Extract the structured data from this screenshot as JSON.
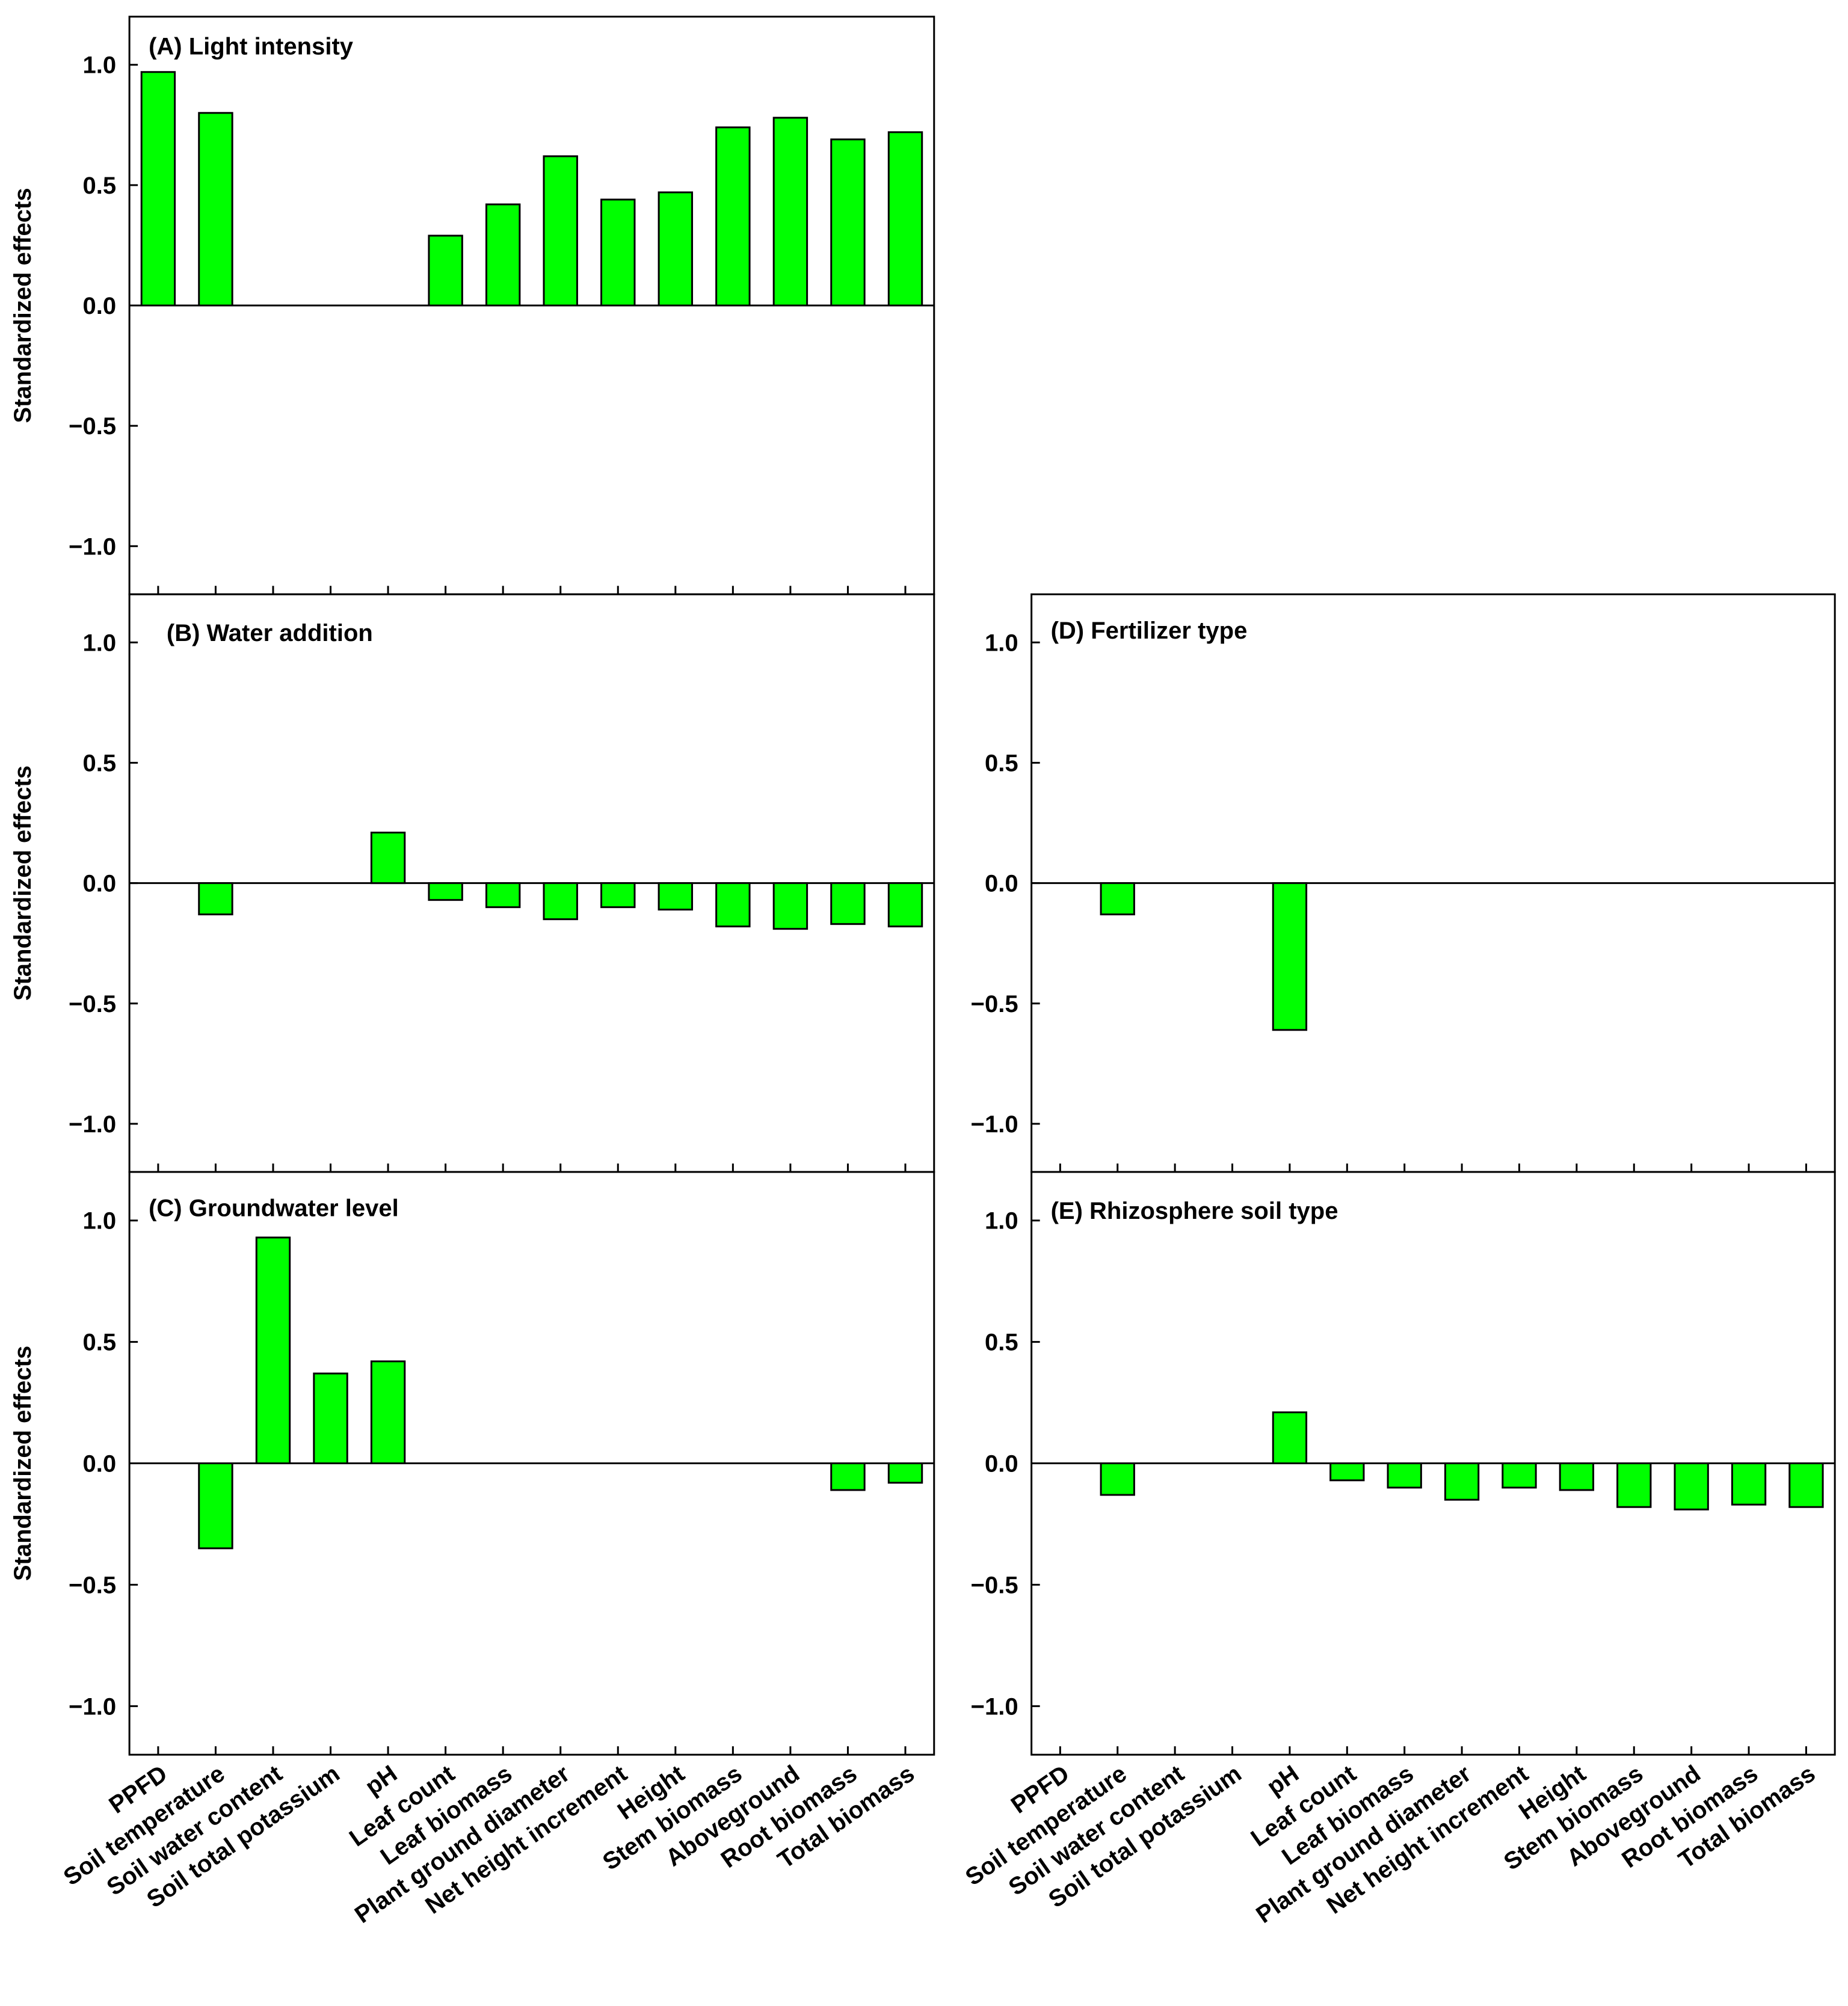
{
  "figure": {
    "ylabel": "Standardized effects"
  },
  "colors": {
    "bar_fill": "#00ff00",
    "bar_stroke": "#000000",
    "axis": "#000000",
    "background": "#ffffff"
  },
  "chart_data": [
    {
      "type": "bar",
      "title": "(A) Light intensity",
      "ylabel": "Standardized effects",
      "ylim": [
        -1.2,
        1.2
      ],
      "yticks": [
        "1.0",
        "0.5",
        "0.0",
        "−0.5",
        "−1.0"
      ],
      "categories": [
        "PPFD",
        "Soil temperature",
        "Soil water content",
        "Soil total potassium",
        "pH",
        "Leaf count",
        "Leaf biomass",
        "Plant ground diameter",
        "Net height increment",
        "Height",
        "Stem biomass",
        "Aboveground",
        "Root biomass",
        "Total biomass"
      ],
      "values": [
        0.97,
        0.8,
        0,
        0,
        0,
        0.29,
        0.42,
        0.62,
        0.44,
        0.47,
        0.74,
        0.78,
        0.69,
        0.72
      ]
    },
    {
      "type": "bar",
      "title": "(B) Water addition",
      "ylabel": "Standardized effects",
      "ylim": [
        -1.2,
        1.2
      ],
      "yticks": [
        "1.0",
        "0.5",
        "0.0",
        "−0.5",
        "−1.0"
      ],
      "categories": [
        "PPFD",
        "Soil temperature",
        "Soil water content",
        "Soil total potassium",
        "pH",
        "Leaf count",
        "Leaf biomass",
        "Plant ground diameter",
        "Net height increment",
        "Height",
        "Stem biomass",
        "Aboveground",
        "Root biomass",
        "Total biomass"
      ],
      "values": [
        0,
        -0.13,
        0,
        0,
        0.21,
        -0.07,
        -0.1,
        -0.15,
        -0.1,
        -0.11,
        -0.18,
        -0.19,
        -0.17,
        -0.18
      ]
    },
    {
      "type": "bar",
      "title": "(C) Groundwater level",
      "ylabel": "Standardized effects",
      "ylim": [
        -1.2,
        1.2
      ],
      "yticks": [
        "1.0",
        "0.5",
        "0.0",
        "−0.5",
        "−1.0"
      ],
      "categories": [
        "PPFD",
        "Soil temperature",
        "Soil water content",
        "Soil total potassium",
        "pH",
        "Leaf count",
        "Leaf biomass",
        "Plant ground diameter",
        "Net height increment",
        "Height",
        "Stem biomass",
        "Aboveground",
        "Root biomass",
        "Total biomass"
      ],
      "values": [
        0,
        -0.35,
        0.93,
        0.37,
        0.42,
        0,
        0,
        0,
        0,
        0,
        0,
        0,
        -0.11,
        -0.08
      ]
    },
    {
      "type": "bar",
      "title": "(D) Fertilizer type",
      "ylim": [
        -1.2,
        1.2
      ],
      "yticks": [
        "1.0",
        "0.5",
        "0.0",
        "−0.5",
        "−1.0"
      ],
      "categories": [
        "PPFD",
        "Soil temperature",
        "Soil water content",
        "Soil total potassium",
        "pH",
        "Leaf count",
        "Leaf biomass",
        "Plant ground diameter",
        "Net height increment",
        "Height",
        "Stem biomass",
        "Aboveground",
        "Root biomass",
        "Total biomass"
      ],
      "values": [
        0,
        -0.13,
        0,
        0,
        -0.61,
        0,
        0,
        0,
        0,
        0,
        0,
        0,
        0,
        0
      ]
    },
    {
      "type": "bar",
      "title": "(E) Rhizosphere soil type",
      "ylim": [
        -1.2,
        1.2
      ],
      "yticks": [
        "1.0",
        "0.5",
        "0.0",
        "−0.5",
        "−1.0"
      ],
      "categories": [
        "PPFD",
        "Soil temperature",
        "Soil water content",
        "Soil total potassium",
        "pH",
        "Leaf count",
        "Leaf biomass",
        "Plant ground diameter",
        "Net height increment",
        "Height",
        "Stem biomass",
        "Aboveground",
        "Root biomass",
        "Total biomass"
      ],
      "values": [
        0,
        -0.13,
        0,
        0,
        0.21,
        -0.07,
        -0.1,
        -0.15,
        -0.1,
        -0.11,
        -0.18,
        -0.19,
        -0.17,
        -0.18
      ]
    }
  ]
}
